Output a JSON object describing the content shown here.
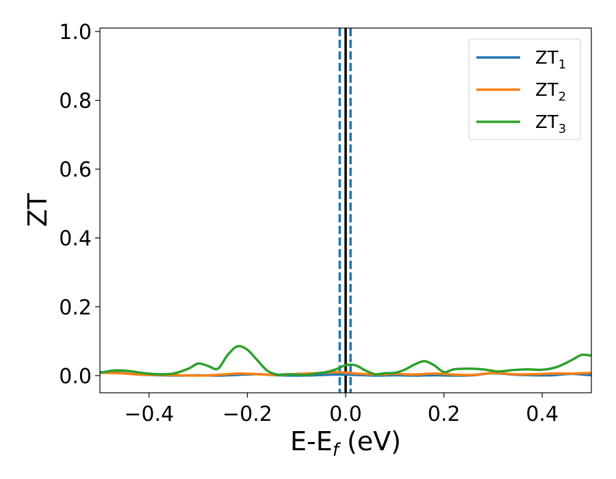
{
  "chart_data": {
    "type": "line",
    "xlabel_main": "E-E",
    "xlabel_sub": "f",
    "xlabel_unit": " (eV)",
    "ylabel": "ZT",
    "xlim": [
      -0.5,
      0.5
    ],
    "ylim": [
      -0.05,
      1.01
    ],
    "xticks": [
      -0.4,
      -0.2,
      0.0,
      0.2,
      0.4
    ],
    "xtick_labels": [
      "−0.4",
      "−0.2",
      "0.0",
      "0.2",
      "0.4"
    ],
    "yticks": [
      0.0,
      0.2,
      0.4,
      0.6,
      0.8,
      1.0
    ],
    "ytick_labels": [
      "0.0",
      "0.2",
      "0.4",
      "0.6",
      "0.8",
      "1.0"
    ],
    "legend_position": "top-right",
    "grid": false,
    "vertical_lines": [
      {
        "x": 0.0,
        "color": "#000000",
        "style": "solid"
      },
      {
        "x": -0.012,
        "color": "#1f77b4",
        "style": "dashed"
      },
      {
        "x": 0.01,
        "color": "#1f77b4",
        "style": "dashed"
      }
    ],
    "series": [
      {
        "name_main": "ZT",
        "name_sub": "1",
        "color": "#1f77b4",
        "x": [
          -0.5,
          -0.46,
          -0.42,
          -0.38,
          -0.34,
          -0.3,
          -0.26,
          -0.22,
          -0.18,
          -0.14,
          -0.1,
          -0.06,
          -0.02,
          0.02,
          0.06,
          0.1,
          0.14,
          0.18,
          0.22,
          0.26,
          0.3,
          0.34,
          0.38,
          0.42,
          0.46,
          0.5
        ],
        "y": [
          0.01,
          0.008,
          0.003,
          0.001,
          0.0,
          0.001,
          0.0,
          0.002,
          0.004,
          0.001,
          0.0,
          0.001,
          0.003,
          0.002,
          0.0,
          0.001,
          0.0,
          0.001,
          0.0,
          0.001,
          0.007,
          0.003,
          0.001,
          0.001,
          0.005,
          0.001
        ]
      },
      {
        "name_main": "ZT",
        "name_sub": "2",
        "color": "#ff7f0e",
        "x": [
          -0.5,
          -0.46,
          -0.42,
          -0.38,
          -0.34,
          -0.3,
          -0.26,
          -0.22,
          -0.18,
          -0.14,
          -0.1,
          -0.06,
          -0.02,
          0.02,
          0.06,
          0.1,
          0.14,
          0.18,
          0.22,
          0.26,
          0.3,
          0.34,
          0.38,
          0.42,
          0.46,
          0.5
        ],
        "y": [
          0.008,
          0.007,
          0.003,
          0.002,
          0.001,
          0.0,
          0.002,
          0.006,
          0.004,
          0.002,
          0.005,
          0.007,
          0.01,
          0.006,
          0.003,
          0.005,
          0.003,
          0.006,
          0.003,
          0.002,
          0.008,
          0.004,
          0.004,
          0.006,
          0.006,
          0.008
        ]
      },
      {
        "name_main": "ZT",
        "name_sub": "3",
        "color": "#2ca02c",
        "x": [
          -0.5,
          -0.47,
          -0.44,
          -0.41,
          -0.38,
          -0.35,
          -0.32,
          -0.3,
          -0.28,
          -0.26,
          -0.24,
          -0.22,
          -0.2,
          -0.18,
          -0.16,
          -0.14,
          -0.12,
          -0.1,
          -0.08,
          -0.06,
          -0.04,
          -0.02,
          0.0,
          0.02,
          0.04,
          0.06,
          0.08,
          0.1,
          0.12,
          0.14,
          0.16,
          0.18,
          0.2,
          0.22,
          0.25,
          0.28,
          0.31,
          0.34,
          0.37,
          0.4,
          0.43,
          0.46,
          0.48,
          0.5
        ],
        "y": [
          0.008,
          0.015,
          0.013,
          0.007,
          0.004,
          0.006,
          0.02,
          0.035,
          0.028,
          0.02,
          0.06,
          0.085,
          0.075,
          0.045,
          0.015,
          0.003,
          0.004,
          0.003,
          0.002,
          0.006,
          0.01,
          0.018,
          0.03,
          0.03,
          0.015,
          0.004,
          0.007,
          0.008,
          0.017,
          0.032,
          0.042,
          0.03,
          0.01,
          0.018,
          0.02,
          0.018,
          0.012,
          0.016,
          0.018,
          0.017,
          0.025,
          0.045,
          0.06,
          0.058
        ]
      }
    ]
  }
}
